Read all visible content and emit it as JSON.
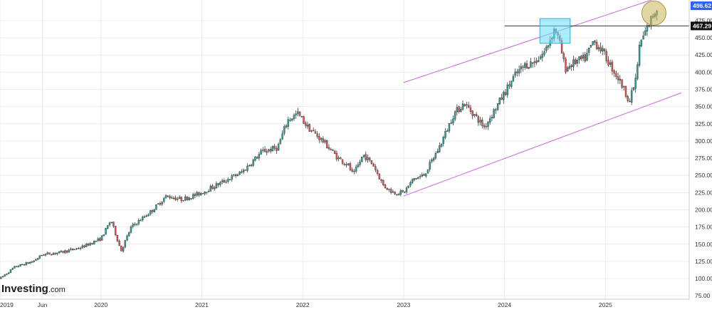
{
  "chart_data": {
    "type": "candlestick",
    "title": "",
    "xlabel": "",
    "ylabel": "",
    "ylim": [
      70,
      505
    ],
    "y_ticks": [
      "75.00",
      "100.00",
      "125.00",
      "150.00",
      "175.00",
      "200.00",
      "225.00",
      "250.00",
      "275.00",
      "300.00",
      "325.00",
      "350.00",
      "375.00",
      "400.00",
      "425.00",
      "450.00",
      "475.00"
    ],
    "x_ticks": [
      {
        "label": "2019",
        "t": 2019.0
      },
      {
        "label": "Jun",
        "t": 2019.42
      },
      {
        "label": "2020",
        "t": 2020.0
      },
      {
        "label": "2021",
        "t": 2021.0
      },
      {
        "label": "2022",
        "t": 2022.0
      },
      {
        "label": "2023",
        "t": 2023.0
      },
      {
        "label": "2024",
        "t": 2024.0
      },
      {
        "label": "2025",
        "t": 2025.0
      }
    ],
    "price_path": [
      [
        2019.0,
        100
      ],
      [
        2019.15,
        117
      ],
      [
        2019.33,
        125
      ],
      [
        2019.42,
        135
      ],
      [
        2019.6,
        138
      ],
      [
        2019.8,
        145
      ],
      [
        2020.0,
        158
      ],
      [
        2020.1,
        185
      ],
      [
        2020.2,
        140
      ],
      [
        2020.3,
        175
      ],
      [
        2020.5,
        198
      ],
      [
        2020.65,
        220
      ],
      [
        2020.8,
        215
      ],
      [
        2020.95,
        222
      ],
      [
        2021.0,
        225
      ],
      [
        2021.2,
        240
      ],
      [
        2021.4,
        255
      ],
      [
        2021.6,
        285
      ],
      [
        2021.75,
        290
      ],
      [
        2021.85,
        330
      ],
      [
        2021.95,
        340
      ],
      [
        2022.05,
        320
      ],
      [
        2022.2,
        300
      ],
      [
        2022.35,
        275
      ],
      [
        2022.45,
        265
      ],
      [
        2022.5,
        250
      ],
      [
        2022.6,
        280
      ],
      [
        2022.7,
        265
      ],
      [
        2022.8,
        235
      ],
      [
        2022.9,
        225
      ],
      [
        2023.0,
        225
      ],
      [
        2023.1,
        245
      ],
      [
        2023.2,
        250
      ],
      [
        2023.35,
        290
      ],
      [
        2023.5,
        340
      ],
      [
        2023.6,
        355
      ],
      [
        2023.7,
        338
      ],
      [
        2023.8,
        320
      ],
      [
        2023.9,
        345
      ],
      [
        2024.0,
        370
      ],
      [
        2024.1,
        395
      ],
      [
        2024.2,
        410
      ],
      [
        2024.3,
        415
      ],
      [
        2024.4,
        430
      ],
      [
        2024.5,
        465
      ],
      [
        2024.55,
        440
      ],
      [
        2024.6,
        405
      ],
      [
        2024.7,
        415
      ],
      [
        2024.8,
        420
      ],
      [
        2024.88,
        445
      ],
      [
        2024.95,
        435
      ],
      [
        2025.05,
        410
      ],
      [
        2025.15,
        385
      ],
      [
        2025.24,
        358
      ],
      [
        2025.3,
        390
      ],
      [
        2025.34,
        440
      ],
      [
        2025.4,
        460
      ],
      [
        2025.46,
        480
      ],
      [
        2025.5,
        490
      ],
      [
        2025.52,
        496.62
      ]
    ],
    "channel_upper": [
      [
        2023.0,
        385
      ],
      [
        2025.7,
        517
      ]
    ],
    "channel_lower": [
      [
        2023.0,
        220
      ],
      [
        2025.75,
        370
      ]
    ],
    "resistance": {
      "value": 467.29,
      "t_start": 2024.0
    },
    "highlight_box": {
      "t_start": 2024.35,
      "t_end": 2024.65,
      "y_low": 442,
      "y_high": 478
    },
    "highlight_circle": {
      "t": 2025.48,
      "y": 486
    },
    "last_price": "496.62",
    "resistance_label": "467.29",
    "colors": {
      "up": "#26a69a",
      "down": "#ef5350",
      "channel": "#cc66dd",
      "box": "#66ddff",
      "circle": "#c8b45a",
      "last_price_bg": "#2962ff",
      "level_bg": "#111111"
    }
  },
  "branding": {
    "logo_main": "Investing",
    "logo_suffix": ".com"
  }
}
